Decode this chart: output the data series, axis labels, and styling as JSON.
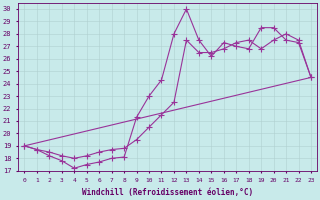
{
  "xlabel": "Windchill (Refroidissement éolien,°C)",
  "bg_color": "#c8eaea",
  "line_color": "#993399",
  "xlim": [
    -0.5,
    23.5
  ],
  "ylim": [
    17,
    30.5
  ],
  "xticks": [
    0,
    1,
    2,
    3,
    4,
    5,
    6,
    7,
    8,
    9,
    10,
    11,
    12,
    13,
    14,
    15,
    16,
    17,
    18,
    19,
    20,
    21,
    22,
    23
  ],
  "yticks": [
    17,
    18,
    19,
    20,
    21,
    22,
    23,
    24,
    25,
    26,
    27,
    28,
    29,
    30
  ],
  "line1_x": [
    0,
    1,
    2,
    3,
    4,
    5,
    6,
    7,
    8,
    9,
    10,
    11,
    12,
    13,
    14,
    15,
    16,
    17,
    18,
    19,
    20,
    21,
    22,
    23
  ],
  "line1_y": [
    19.0,
    18.7,
    18.2,
    17.8,
    17.2,
    17.5,
    17.7,
    18.0,
    18.1,
    21.3,
    23.0,
    24.3,
    28.0,
    30.0,
    27.5,
    26.2,
    27.3,
    27.0,
    26.8,
    28.5,
    28.5,
    27.5,
    27.3,
    24.5
  ],
  "line2_x": [
    0,
    1,
    2,
    3,
    4,
    5,
    6,
    7,
    8,
    9,
    10,
    11,
    12,
    13,
    14,
    15,
    16,
    17,
    18,
    19,
    20,
    21,
    22,
    23
  ],
  "line2_y": [
    19.0,
    18.7,
    18.5,
    18.2,
    18.0,
    18.2,
    18.5,
    18.7,
    18.8,
    19.5,
    20.5,
    21.5,
    22.5,
    27.5,
    26.5,
    26.5,
    26.8,
    27.3,
    27.5,
    26.8,
    27.5,
    28.0,
    27.5,
    24.5
  ],
  "line3_x": [
    0,
    23
  ],
  "line3_y": [
    19.0,
    24.5
  ]
}
